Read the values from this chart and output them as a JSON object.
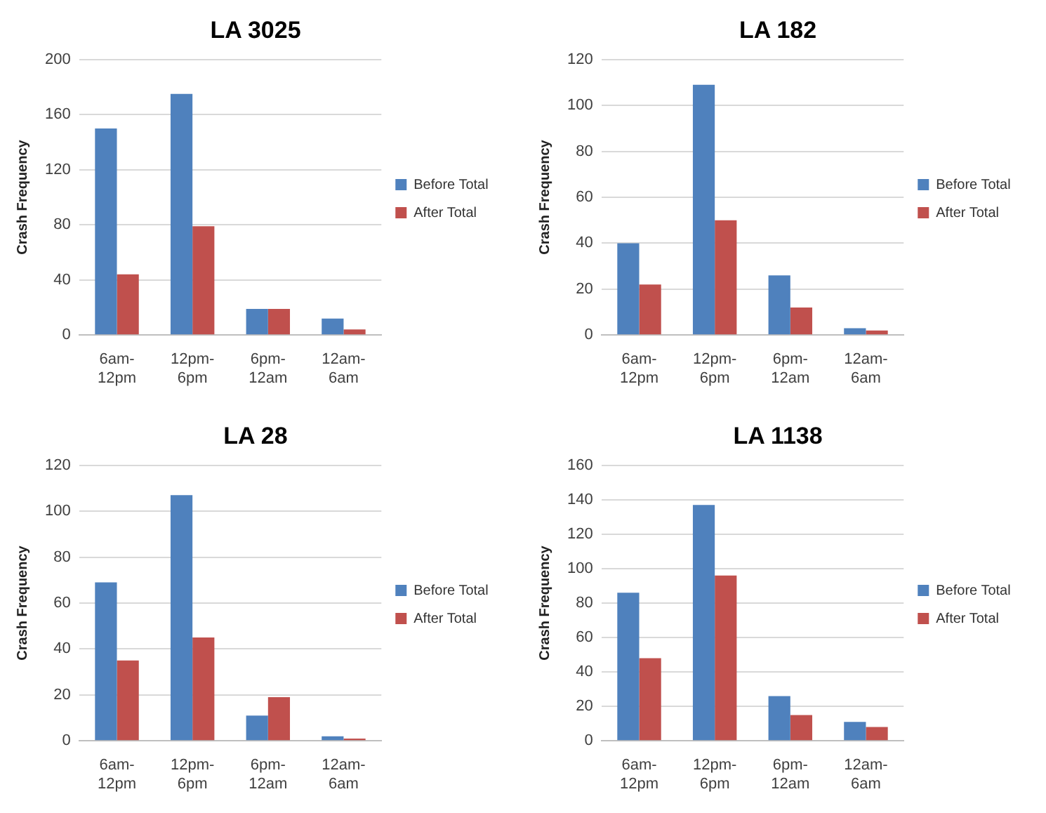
{
  "chart_data": [
    {
      "type": "bar",
      "title": "LA 3025",
      "ylabel": "Crash Frequency",
      "categories": [
        "6am-12pm",
        "12pm-6pm",
        "6pm-12am",
        "12am-6am"
      ],
      "series": [
        {
          "name": "Before Total",
          "color": "#4f81bd",
          "values": [
            150,
            175,
            19,
            12
          ]
        },
        {
          "name": "After Total",
          "color": "#c0504d",
          "values": [
            44,
            79,
            19,
            4
          ]
        }
      ],
      "ylim": [
        0,
        200
      ],
      "yticks": [
        0,
        40,
        80,
        120,
        160,
        200
      ],
      "grid": "y",
      "legend": "right"
    },
    {
      "type": "bar",
      "title": "LA 182",
      "ylabel": "Crash Frequency",
      "categories": [
        "6am-12pm",
        "12pm-6pm",
        "6pm-12am",
        "12am-6am"
      ],
      "series": [
        {
          "name": "Before Total",
          "color": "#4f81bd",
          "values": [
            40,
            109,
            26,
            3
          ]
        },
        {
          "name": "After Total",
          "color": "#c0504d",
          "values": [
            22,
            50,
            12,
            2
          ]
        }
      ],
      "ylim": [
        0,
        120
      ],
      "yticks": [
        0,
        20,
        40,
        60,
        80,
        100,
        120
      ],
      "grid": "y",
      "legend": "right"
    },
    {
      "type": "bar",
      "title": "LA 28",
      "ylabel": "Crash Frequency",
      "categories": [
        "6am-12pm",
        "12pm-6pm",
        "6pm-12am",
        "12am-6am"
      ],
      "series": [
        {
          "name": "Before Total",
          "color": "#4f81bd",
          "values": [
            69,
            107,
            11,
            2
          ]
        },
        {
          "name": "After Total",
          "color": "#c0504d",
          "values": [
            35,
            45,
            19,
            1
          ]
        }
      ],
      "ylim": [
        0,
        120
      ],
      "yticks": [
        0,
        20,
        40,
        60,
        80,
        100,
        120
      ],
      "grid": "y",
      "legend": "right"
    },
    {
      "type": "bar",
      "title": "LA 1138",
      "ylabel": "Crash Frequency",
      "categories": [
        "6am-12pm",
        "12pm-6pm",
        "6pm-12am",
        "12am-6am"
      ],
      "series": [
        {
          "name": "Before Total",
          "color": "#4f81bd",
          "values": [
            86,
            137,
            26,
            11
          ]
        },
        {
          "name": "After Total",
          "color": "#c0504d",
          "values": [
            48,
            96,
            15,
            8
          ]
        }
      ],
      "ylim": [
        0,
        160
      ],
      "yticks": [
        0,
        20,
        40,
        60,
        80,
        100,
        120,
        140,
        160
      ],
      "grid": "y",
      "legend": "right"
    }
  ]
}
